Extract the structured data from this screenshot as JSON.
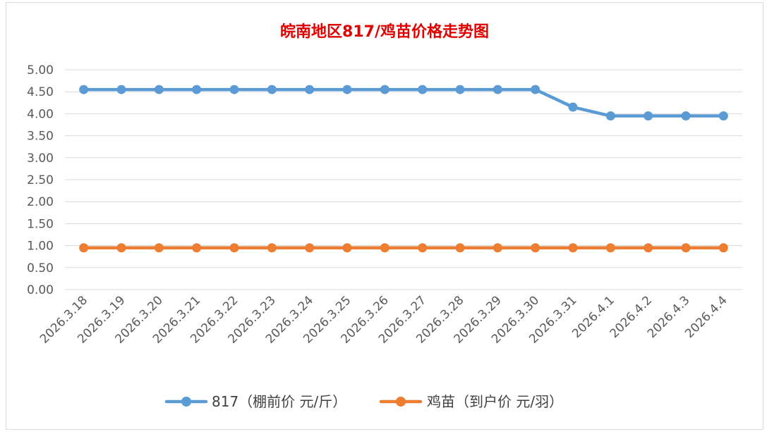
{
  "chart_data": {
    "type": "line",
    "title": "皖南地区817/鸡苗价格走势图",
    "title_color": "#e00000",
    "categories": [
      "2026.3.18",
      "2026.3.19",
      "2026.3.20",
      "2026.3.21",
      "2026.3.22",
      "2026.3.23",
      "2026.3.24",
      "2026.3.25",
      "2026.3.26",
      "2026.3.27",
      "2026.3.28",
      "2026.3.29",
      "2026.3.30",
      "2026.3.31",
      "2026.4.1",
      "2026.4.2",
      "2026.4.3",
      "2026.4.4"
    ],
    "series": [
      {
        "name": "817（棚前价 元/斤）",
        "color": "#5b9bd5",
        "values": [
          4.55,
          4.55,
          4.55,
          4.55,
          4.55,
          4.55,
          4.55,
          4.55,
          4.55,
          4.55,
          4.55,
          4.55,
          4.55,
          4.15,
          3.95,
          3.95,
          3.95,
          3.95
        ]
      },
      {
        "name": "鸡苗（到户价 元/羽）",
        "color": "#ed7d31",
        "values": [
          0.95,
          0.95,
          0.95,
          0.95,
          0.95,
          0.95,
          0.95,
          0.95,
          0.95,
          0.95,
          0.95,
          0.95,
          0.95,
          0.95,
          0.95,
          0.95,
          0.95,
          0.95
        ]
      }
    ],
    "ylim": [
      0,
      5
    ],
    "yticks": [
      "0.00",
      "0.50",
      "1.00",
      "1.50",
      "2.00",
      "2.50",
      "3.00",
      "3.50",
      "4.00",
      "4.50",
      "5.00"
    ],
    "grid": true,
    "legend_position": "bottom"
  }
}
